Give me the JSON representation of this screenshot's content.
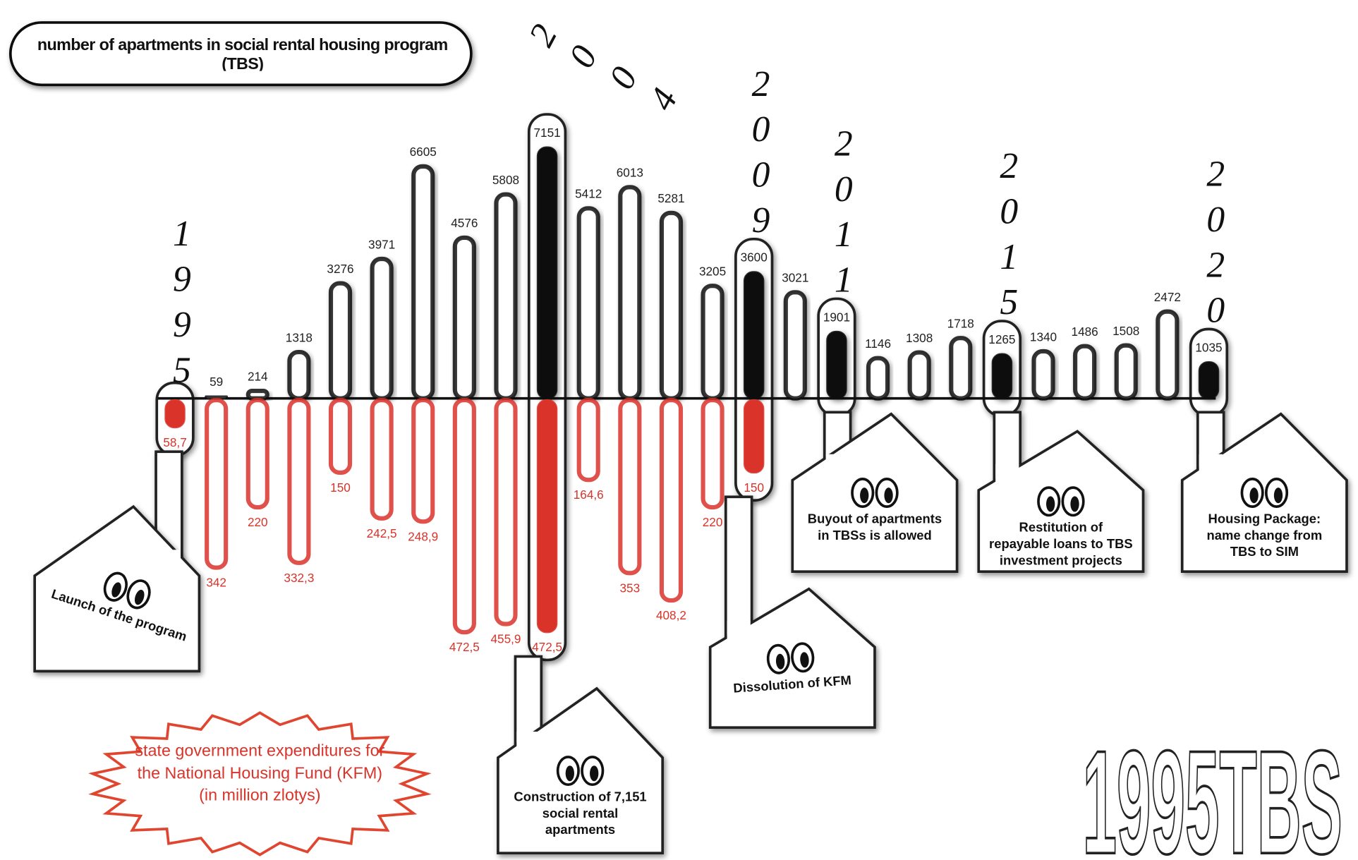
{
  "chart_data": {
    "type": "bar",
    "categories": [
      "1995",
      null,
      null,
      null,
      null,
      null,
      null,
      null,
      null,
      "2004",
      null,
      null,
      null,
      null,
      "2009",
      null,
      "2011",
      null,
      null,
      null,
      "2015",
      null,
      null,
      null,
      null,
      "2020"
    ],
    "series": [
      {
        "name": "number of apartments in social rental housing program (TBS)",
        "color": "#111111",
        "values": [
          null,
          59,
          214,
          1318,
          3276,
          3971,
          6605,
          4576,
          5808,
          7151,
          5412,
          6013,
          5281,
          3205,
          3600,
          3021,
          1901,
          1146,
          1308,
          1718,
          1265,
          1340,
          1486,
          1508,
          2472,
          1035
        ]
      },
      {
        "name": "state government expenditures for the National Housing Fund (KFM) (in million zlotys)",
        "color": "#d9332a",
        "values": [
          58.7,
          342,
          220,
          332.3,
          150,
          242.5,
          248.9,
          472.5,
          455.9,
          472.5,
          164.6,
          353,
          408.2,
          220,
          150,
          null,
          null,
          null,
          null,
          null,
          null,
          null,
          null,
          null,
          null,
          null
        ],
        "value_labels": [
          "58,7",
          "342",
          "220",
          "332,3",
          "150",
          "242,5",
          "248,9",
          "472,5",
          "455,9",
          "472,5",
          "164,6",
          "353",
          "408,2",
          "220",
          "150",
          null,
          null,
          null,
          null,
          null,
          null,
          null,
          null,
          null,
          null,
          null
        ]
      }
    ],
    "annotations": [
      "Launch of the program",
      "Construction of 7,151 social rental apartments",
      "Dissolution of KFM",
      "Buyout of apartments in TBSs is allowed",
      "Restitution of repayable loans to TBS investment projects",
      "Housing Package: name change from TBS to SIM"
    ],
    "logo": "1995TBS"
  }
}
